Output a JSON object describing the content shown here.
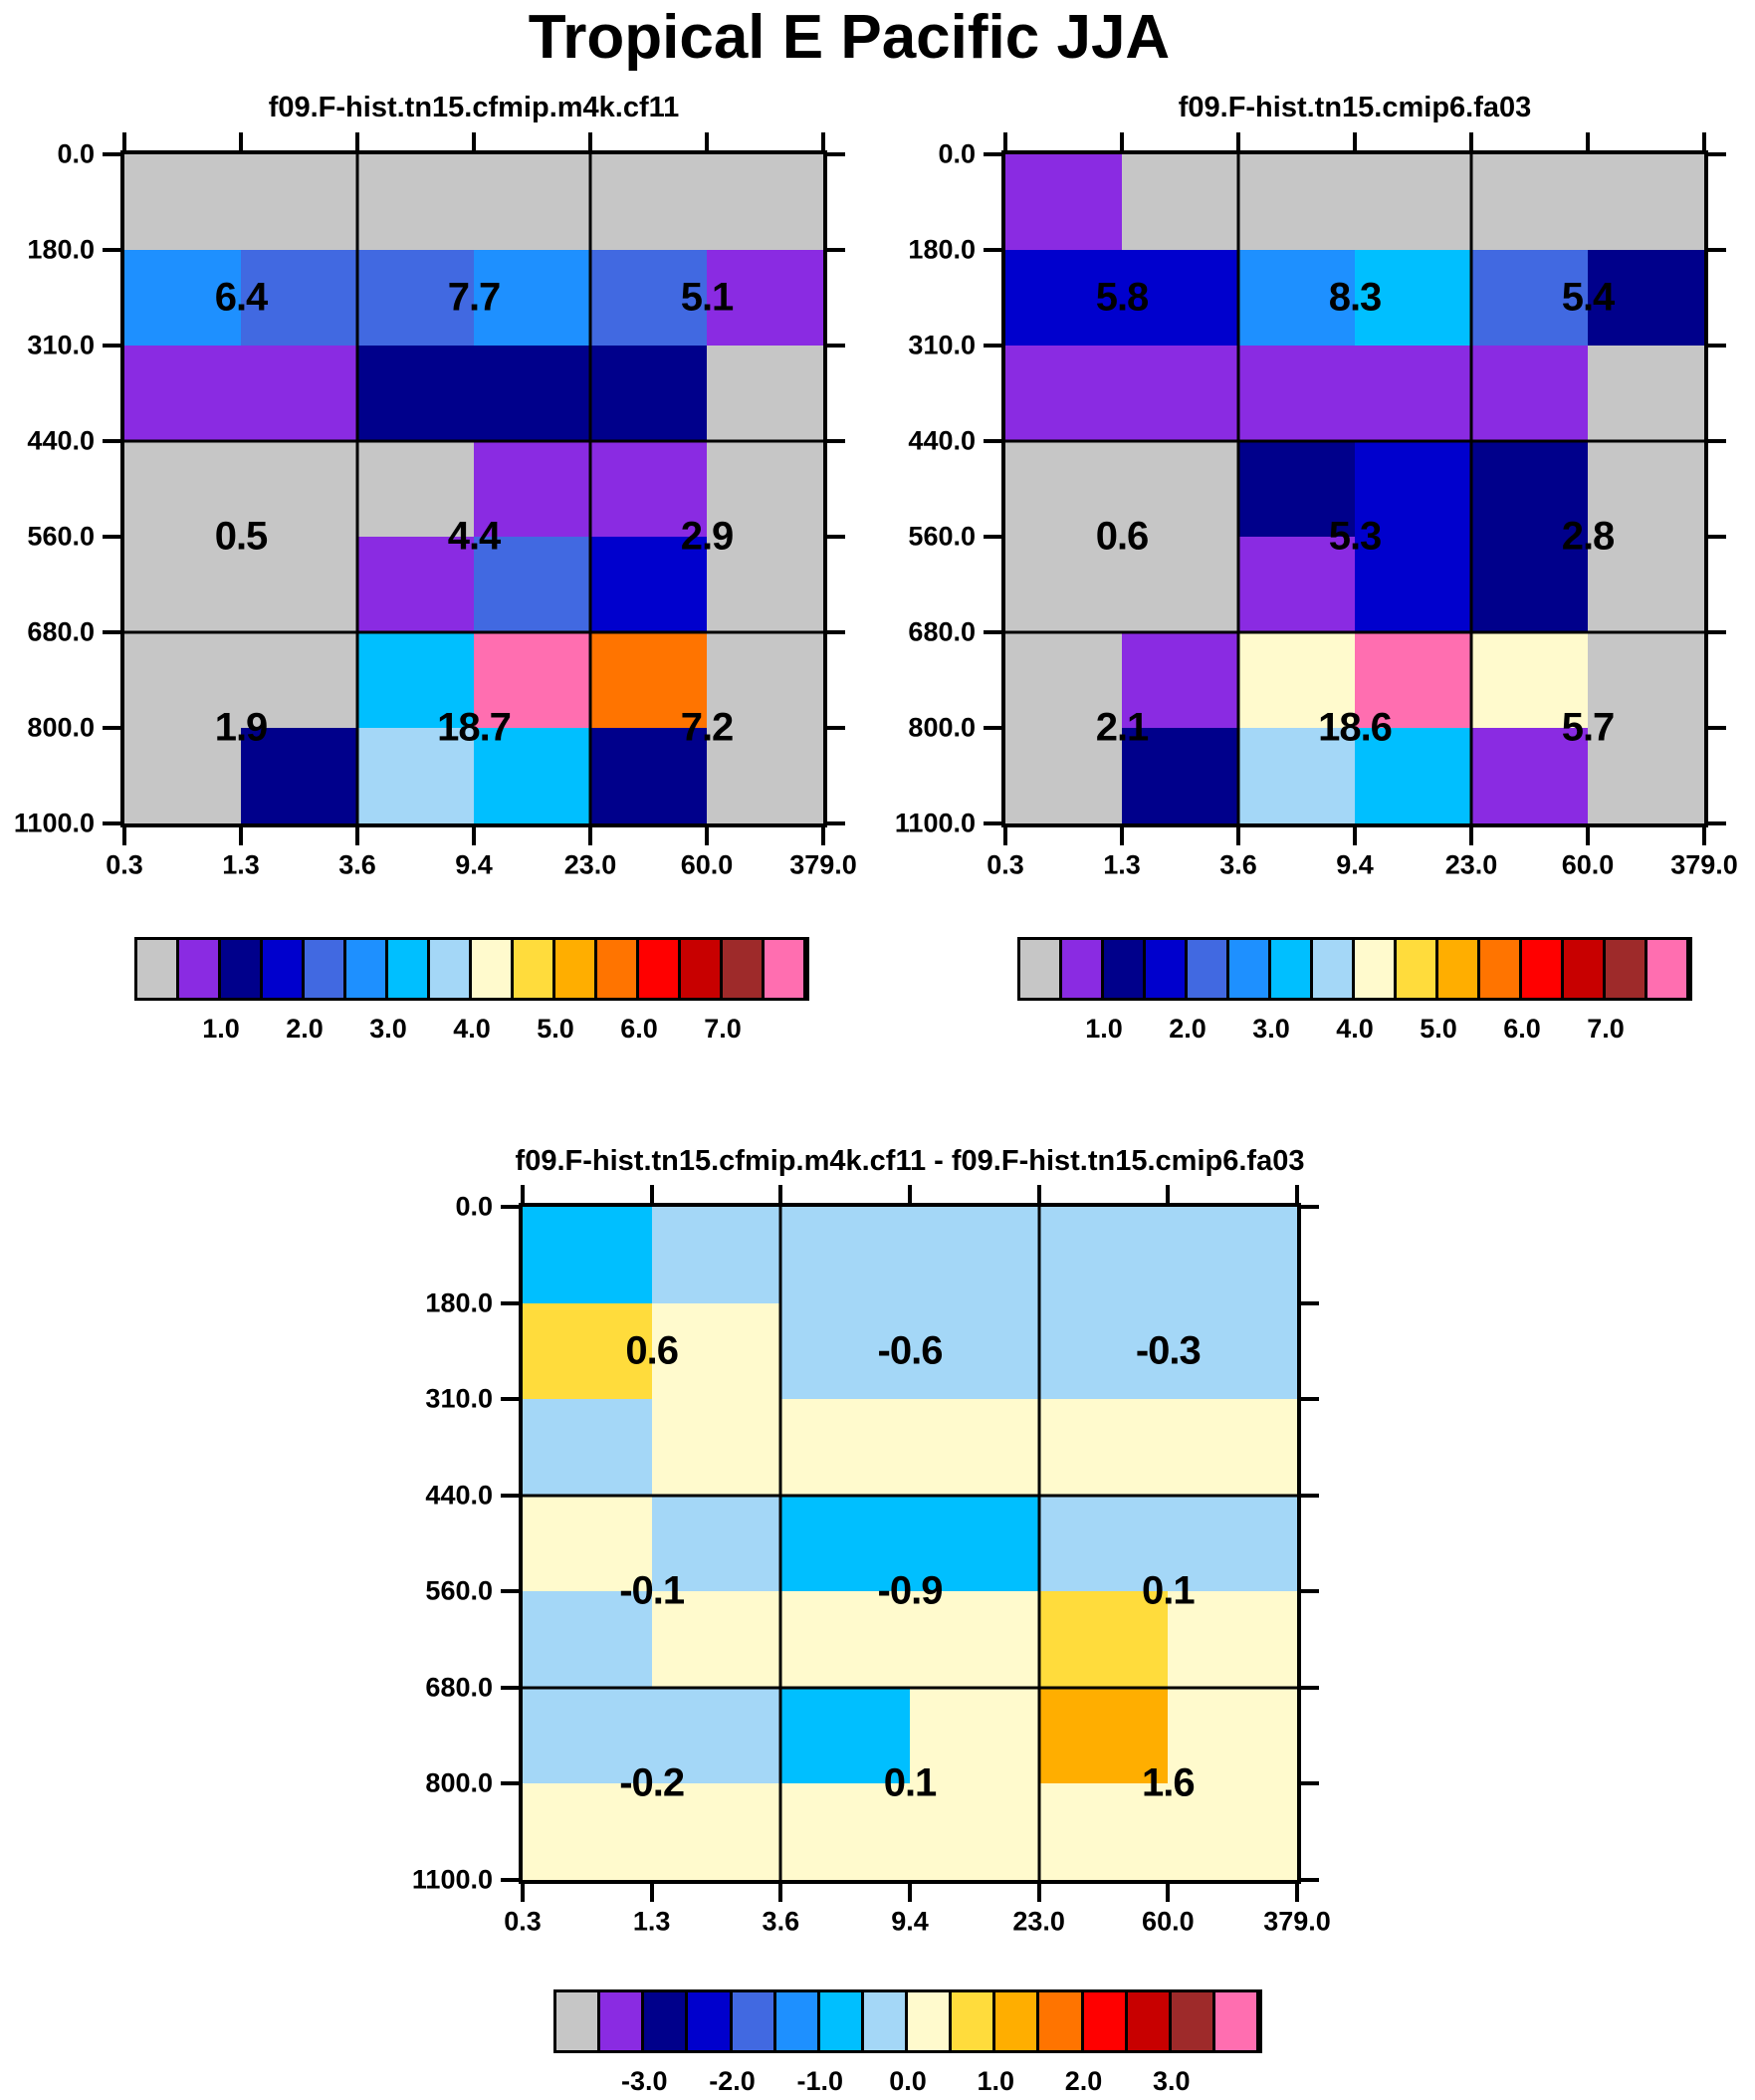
{
  "chart_data": {
    "type": "heatmap",
    "suptitle": "Tropical E Pacific JJA",
    "x_bin_edges": [
      0.3,
      1.3,
      3.6,
      9.4,
      23.0,
      60.0,
      379.0
    ],
    "y_bin_edges": [
      0.0,
      180.0,
      310.0,
      440.0,
      560.0,
      680.0,
      800.0,
      1100.0
    ],
    "grid": "thick dividers at x=3.6 and 23.0, y=440.0 and 680.0 split each panel into 3x3 blocks; printed numbers are block values",
    "colorbar_colors": [
      "gray",
      "purple",
      "navy",
      "blue",
      "royal",
      "dodger",
      "deepsky",
      "pale",
      "cream",
      "gold",
      "orange",
      "darkorange",
      "red",
      "darkred",
      "brown",
      "pink"
    ],
    "panels": [
      {
        "title": "f09.F-hist.tn15.cfmip.m4k.cf11",
        "cell_colors": [
          [
            "gray",
            "gray",
            "gray",
            "gray",
            "gray",
            "gray"
          ],
          [
            "dodger",
            "royal",
            "royal",
            "dodger",
            "royal",
            "purple"
          ],
          [
            "purple",
            "purple",
            "navy",
            "navy",
            "navy",
            "gray"
          ],
          [
            "gray",
            "gray",
            "gray",
            "purple",
            "purple",
            "gray"
          ],
          [
            "gray",
            "gray",
            "purple",
            "royal",
            "blue",
            "gray"
          ],
          [
            "gray",
            "gray",
            "deepsky",
            "pink",
            "darkorange",
            "gray"
          ],
          [
            "gray",
            "navy",
            "pale",
            "deepsky",
            "navy",
            "gray"
          ]
        ],
        "block_values": [
          [
            6.4,
            7.7,
            5.1
          ],
          [
            0.5,
            4.4,
            2.9
          ],
          [
            1.9,
            18.7,
            7.2
          ]
        ],
        "colorbar_tick_values": [
          1.0,
          2.0,
          3.0,
          4.0,
          5.0,
          6.0,
          7.0
        ]
      },
      {
        "title": "f09.F-hist.tn15.cmip6.fa03",
        "cell_colors": [
          [
            "purple",
            "gray",
            "gray",
            "gray",
            "gray",
            "gray"
          ],
          [
            "blue",
            "blue",
            "dodger",
            "deepsky",
            "royal",
            "navy"
          ],
          [
            "purple",
            "purple",
            "purple",
            "purple",
            "purple",
            "gray"
          ],
          [
            "gray",
            "gray",
            "navy",
            "blue",
            "navy",
            "gray"
          ],
          [
            "gray",
            "gray",
            "purple",
            "blue",
            "navy",
            "gray"
          ],
          [
            "gray",
            "purple",
            "cream",
            "pink",
            "cream",
            "gray"
          ],
          [
            "gray",
            "navy",
            "pale",
            "deepsky",
            "purple",
            "gray"
          ]
        ],
        "block_values": [
          [
            5.8,
            8.3,
            5.4
          ],
          [
            0.6,
            5.3,
            2.8
          ],
          [
            2.1,
            18.6,
            5.7
          ]
        ],
        "colorbar_tick_values": [
          1.0,
          2.0,
          3.0,
          4.0,
          5.0,
          6.0,
          7.0
        ]
      },
      {
        "title": "f09.F-hist.tn15.cfmip.m4k.cf11 - f09.F-hist.tn15.cmip6.fa03",
        "cell_colors": [
          [
            "deepsky",
            "pale",
            "pale",
            "pale",
            "pale",
            "pale"
          ],
          [
            "gold",
            "cream",
            "pale",
            "pale",
            "pale",
            "pale"
          ],
          [
            "pale",
            "cream",
            "cream",
            "cream",
            "cream",
            "cream"
          ],
          [
            "cream",
            "pale",
            "deepsky",
            "deepsky",
            "pale",
            "pale"
          ],
          [
            "pale",
            "cream",
            "cream",
            "cream",
            "gold",
            "cream"
          ],
          [
            "pale",
            "pale",
            "deepsky",
            "cream",
            "orange",
            "cream"
          ],
          [
            "cream",
            "cream",
            "cream",
            "cream",
            "cream",
            "cream"
          ]
        ],
        "block_values": [
          [
            0.6,
            -0.6,
            -0.3
          ],
          [
            -0.1,
            -0.9,
            0.1
          ],
          [
            -0.2,
            0.1,
            1.6
          ]
        ],
        "colorbar_tick_values": [
          -3.0,
          -2.0,
          -1.0,
          0.0,
          1.0,
          2.0,
          3.0
        ]
      }
    ]
  },
  "ui": {
    "background": "#FFFFFF",
    "text_color": "#000000",
    "frame_color": "#000000",
    "palette": {
      "gray": "#C6C6C6",
      "purple": "#8A2BE2",
      "navy": "#00008B",
      "blue": "#0000CD",
      "royal": "#4169E1",
      "dodger": "#1E90FF",
      "deepsky": "#00BFFF",
      "pale": "#A4D7F7",
      "cream": "#FFFACD",
      "gold": "#FFDC3C",
      "orange": "#FFAE00",
      "darkorange": "#FF7400",
      "red": "#FF0000",
      "darkred": "#C80000",
      "brown": "#9E2A2A",
      "pink": "#FF6EB0"
    }
  }
}
